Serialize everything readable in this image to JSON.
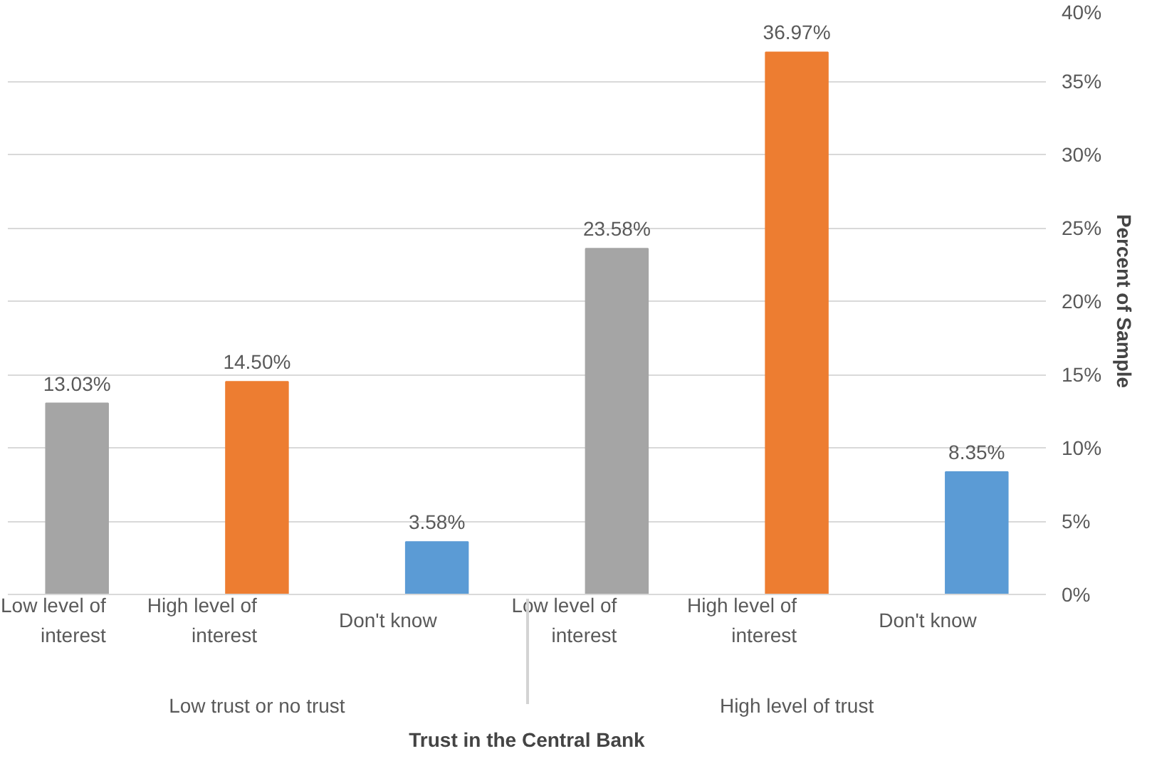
{
  "chart_data": {
    "type": "bar",
    "xlabel": "Trust in the Central Bank",
    "ylabel": "Percent of Sample",
    "categories": [
      "Low trust or no trust",
      "High level of trust"
    ],
    "series": [
      {
        "name": "Low level of interest",
        "color": "#a5a5a5",
        "values": [
          13.03,
          23.58
        ],
        "value_labels": [
          "13.03%",
          "23.58%"
        ]
      },
      {
        "name": "High level of interest",
        "color": "#ed7d31",
        "values": [
          14.5,
          36.97
        ],
        "value_labels": [
          "14.50%",
          "36.97%"
        ]
      },
      {
        "name": "Don't know",
        "color": "#5b9bd5",
        "values": [
          3.58,
          8.35
        ],
        "value_labels": [
          "3.58%",
          "8.35%"
        ]
      }
    ],
    "ylim": [
      0,
      40
    ],
    "yticks": [
      {
        "value": 0,
        "label": "0%"
      },
      {
        "value": 5,
        "label": "5%"
      },
      {
        "value": 10,
        "label": "10%"
      },
      {
        "value": 15,
        "label": "15%"
      },
      {
        "value": 20,
        "label": "20%"
      },
      {
        "value": 25,
        "label": "25%"
      },
      {
        "value": 30,
        "label": "30%"
      },
      {
        "value": 35,
        "label": "35%"
      },
      {
        "value": 40,
        "label": "40%"
      }
    ],
    "grid": "y"
  }
}
